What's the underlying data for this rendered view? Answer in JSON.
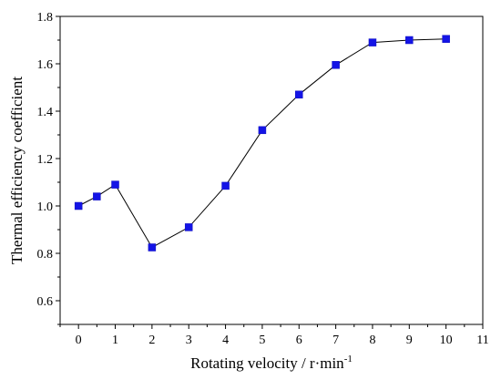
{
  "chart_data": {
    "type": "line",
    "title": "",
    "xlabel": "Rotating velocity / r·min",
    "xlabel_sup": "-1",
    "ylabel": "Thermal efficiency coefficient",
    "xlim": [
      -0.5,
      11
    ],
    "ylim": [
      0.5,
      1.8
    ],
    "x_ticks": [
      0,
      1,
      2,
      3,
      4,
      5,
      6,
      7,
      8,
      9,
      10,
      11
    ],
    "x_tick_labels": [
      "0",
      "1",
      "2",
      "3",
      "4",
      "5",
      "6",
      "7",
      "8",
      "9",
      "10",
      "11"
    ],
    "y_ticks": [
      0.6,
      0.8,
      1.0,
      1.2,
      1.4,
      1.6,
      1.8
    ],
    "y_tick_labels": [
      "0.6",
      "0.8",
      "1.0",
      "1.2",
      "1.4",
      "1.6",
      "1.8"
    ],
    "grid": false,
    "legend": "none",
    "series": [
      {
        "marker": "square",
        "marker_color": "#1414e6",
        "line_color": "#000000",
        "x": [
          0,
          0.5,
          1,
          2,
          3,
          4,
          5,
          6,
          7,
          8,
          9,
          10
        ],
        "y": [
          1.0,
          1.04,
          1.09,
          0.825,
          0.91,
          1.085,
          1.32,
          1.47,
          1.595,
          1.69,
          1.7,
          1.705
        ]
      }
    ]
  }
}
